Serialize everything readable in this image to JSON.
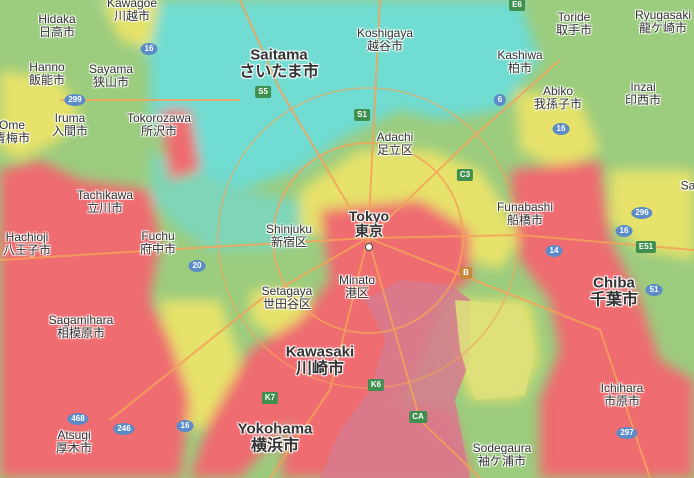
{
  "map": {
    "colors": {
      "cyan": "#6fdcd2",
      "green": "#9ccc7e",
      "yellow": "#e6e26a",
      "red": "#ef6c70",
      "pink": "#e07a8a",
      "water": "#d77a8e"
    },
    "labels": [
      {
        "id": "hidaka",
        "en": "Hidaka",
        "jp": "日高市",
        "size": "small"
      },
      {
        "id": "kawagoe",
        "en": "Kawagoe",
        "jp": "川越市",
        "size": "small"
      },
      {
        "id": "saitama",
        "en": "Saitama",
        "jp": "さいたま市",
        "size": "big"
      },
      {
        "id": "koshigaya",
        "en": "Koshigaya",
        "jp": "越谷市",
        "size": "small"
      },
      {
        "id": "toride",
        "en": "Toride",
        "jp": "取手市",
        "size": "small"
      },
      {
        "id": "ryugasaki",
        "en": "Ryugasaki",
        "jp": "龍ケ崎市",
        "size": "small"
      },
      {
        "id": "hanno",
        "en": "Hanno",
        "jp": "飯能市",
        "size": "small"
      },
      {
        "id": "sayama",
        "en": "Sayama",
        "jp": "狭山市",
        "size": "small"
      },
      {
        "id": "kashiwa",
        "en": "Kashiwa",
        "jp": "柏市",
        "size": "small"
      },
      {
        "id": "abiko",
        "en": "Abiko",
        "jp": "我孫子市",
        "size": "small"
      },
      {
        "id": "inzai",
        "en": "Inzai",
        "jp": "印西市",
        "size": "small"
      },
      {
        "id": "ome",
        "en": "Ome",
        "jp": "青梅市",
        "size": "small"
      },
      {
        "id": "iruma",
        "en": "Iruma",
        "jp": "入間市",
        "size": "small"
      },
      {
        "id": "tokorozawa",
        "en": "Tokorozawa",
        "jp": "所沢市",
        "size": "small"
      },
      {
        "id": "adachi",
        "en": "Adachi",
        "jp": "足立区",
        "size": "small"
      },
      {
        "id": "tachikawa",
        "en": "Tachikawa",
        "jp": "立川市",
        "size": "small"
      },
      {
        "id": "shinjuku",
        "en": "Shinjuku",
        "jp": "新宿区",
        "size": "small"
      },
      {
        "id": "tokyo",
        "en": "Tokyo",
        "jp": "東京",
        "size": "tokyo"
      },
      {
        "id": "funabashi",
        "en": "Funabashi",
        "jp": "船橋市",
        "size": "small"
      },
      {
        "id": "hachioji",
        "en": "Hachioji",
        "jp": "八王子市",
        "size": "small"
      },
      {
        "id": "fuchu",
        "en": "Fuchu",
        "jp": "府中市",
        "size": "small"
      },
      {
        "id": "minato",
        "en": "Minato",
        "jp": "港区",
        "size": "small"
      },
      {
        "id": "chiba",
        "en": "Chiba",
        "jp": "千葉市",
        "size": "big"
      },
      {
        "id": "setagaya",
        "en": "Setagaya",
        "jp": "世田谷区",
        "size": "small"
      },
      {
        "id": "sagamihara",
        "en": "Sagamihara",
        "jp": "相模原市",
        "size": "small"
      },
      {
        "id": "kawasaki",
        "en": "Kawasaki",
        "jp": "川崎市",
        "size": "big"
      },
      {
        "id": "ichihara",
        "en": "Ichihara",
        "jp": "市原市",
        "size": "small"
      },
      {
        "id": "atsugi",
        "en": "Atsugi",
        "jp": "厚木市",
        "size": "small"
      },
      {
        "id": "yokohama",
        "en": "Yokohama",
        "jp": "横浜市",
        "size": "big"
      },
      {
        "id": "sodegaura",
        "en": "Sodegaura",
        "jp": "袖ケ浦市",
        "size": "small"
      }
    ],
    "partial_labels": [
      {
        "id": "sa",
        "text": "Sa"
      }
    ],
    "shields": [
      {
        "id": "e6",
        "text": "E6",
        "kind": "exp"
      },
      {
        "id": "r16a",
        "text": "16",
        "kind": "nat"
      },
      {
        "id": "s5",
        "text": "S5",
        "kind": "exp"
      },
      {
        "id": "r299",
        "text": "299",
        "kind": "nat"
      },
      {
        "id": "s1",
        "text": "S1",
        "kind": "exp"
      },
      {
        "id": "r6",
        "text": "6",
        "kind": "nat"
      },
      {
        "id": "r16b",
        "text": "16",
        "kind": "nat"
      },
      {
        "id": "c3",
        "text": "C3",
        "kind": "exp"
      },
      {
        "id": "r296",
        "text": "296",
        "kind": "nat"
      },
      {
        "id": "r16c",
        "text": "16",
        "kind": "nat"
      },
      {
        "id": "e51",
        "text": "E51",
        "kind": "exp"
      },
      {
        "id": "r14",
        "text": "14",
        "kind": "nat"
      },
      {
        "id": "r20",
        "text": "20",
        "kind": "nat"
      },
      {
        "id": "b",
        "text": "B",
        "kind": "exp"
      },
      {
        "id": "r51",
        "text": "51",
        "kind": "nat"
      },
      {
        "id": "k6",
        "text": "K6",
        "kind": "exp"
      },
      {
        "id": "k7",
        "text": "K7",
        "kind": "exp"
      },
      {
        "id": "ca",
        "text": "CA",
        "kind": "exp"
      },
      {
        "id": "r468",
        "text": "468",
        "kind": "nat"
      },
      {
        "id": "r246",
        "text": "246",
        "kind": "nat"
      },
      {
        "id": "r16d",
        "text": "16",
        "kind": "nat"
      },
      {
        "id": "r297",
        "text": "297",
        "kind": "nat"
      }
    ]
  }
}
